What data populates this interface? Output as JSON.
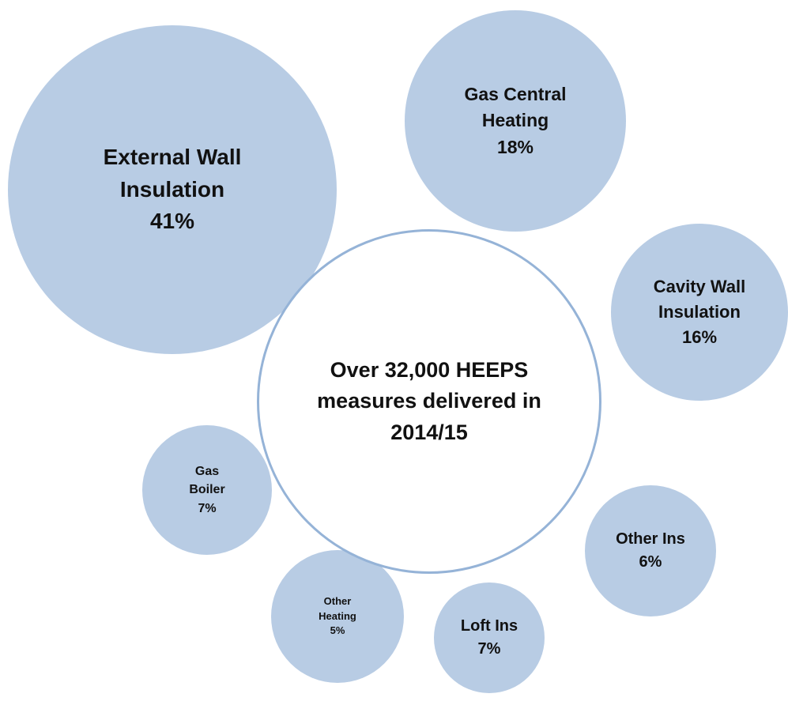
{
  "chart_data": {
    "type": "bubble",
    "title": "Over 32,000 HEEPS measures delivered in 2014/15",
    "categories": [
      "External Wall Insulation",
      "Gas Central Heating",
      "Cavity Wall Insulation",
      "Gas Boiler",
      "Other Ins",
      "Other Heating",
      "Loft Ins"
    ],
    "values": [
      41,
      18,
      16,
      7,
      6,
      5,
      7
    ],
    "value_labels": [
      "41%",
      "18%",
      "16%",
      "7%",
      "6%",
      "5%",
      "7%"
    ],
    "color": "#b8cce4"
  }
}
